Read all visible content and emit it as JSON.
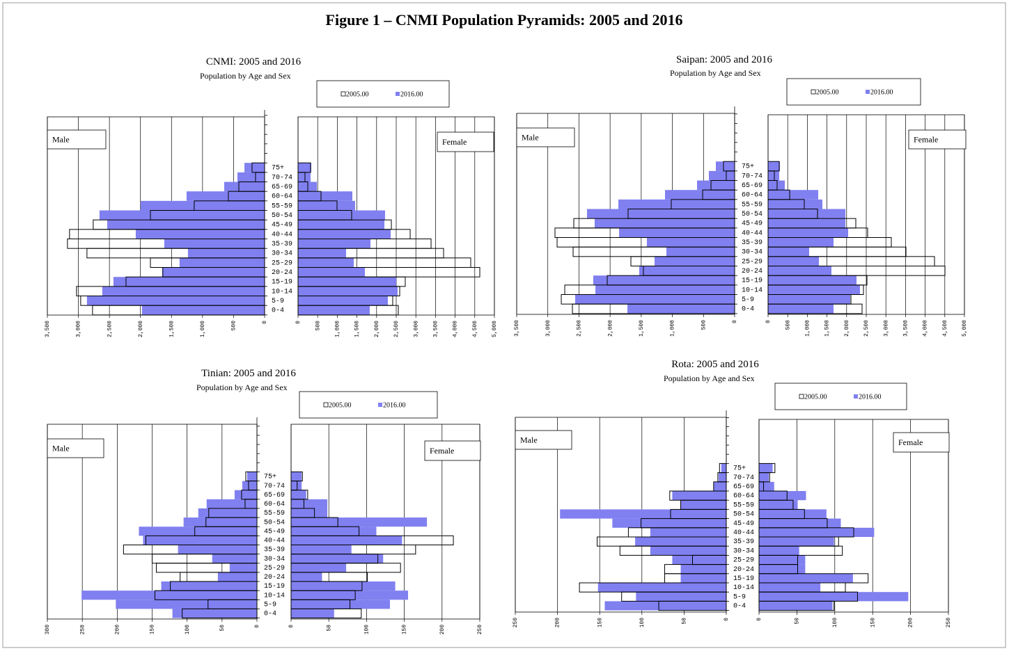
{
  "figure_title": "Figure 1 – CNMI Population Pyramids: 2005 and 2016",
  "chart_data": [
    {
      "type": "pyramid",
      "title": "CNMI: 2005 and 2016",
      "subtitle": "Population by Age and Sex",
      "male_label": "Male",
      "female_label": "Female",
      "categories": [
        "0-4",
        "5-9",
        "10-14",
        "15-19",
        "20-24",
        "25-29",
        "30-34",
        "35-39",
        "40-44",
        "45-49",
        "50-54",
        "55-59",
        "60-64",
        "65-69",
        "70-74",
        "75+"
      ],
      "series": [
        {
          "name": "2005.00",
          "color": "#ffffff",
          "male": [
            2772,
            2963,
            3030,
            2233,
            1640,
            1840,
            2862,
            3176,
            3143,
            2761,
            1840,
            1134,
            584,
            415,
            146,
            202
          ],
          "female": [
            2553,
            2411,
            2589,
            2730,
            4628,
            4397,
            3706,
            3387,
            2855,
            2376,
            1365,
            993,
            585,
            248,
            177,
            319
          ]
        },
        {
          "name": "2016.00",
          "color": "#8080f0",
          "male": [
            1975,
            2862,
            2615,
            2435,
            1650,
            1370,
            1235,
            1616,
            2076,
            2536,
            2660,
            1998,
            1257,
            651,
            438,
            325
          ],
          "female": [
            1826,
            2287,
            2535,
            2500,
            1702,
            1418,
            1223,
            1844,
            2358,
            2199,
            2216,
            1454,
            1383,
            479,
            319,
            337
          ]
        }
      ],
      "male_xlim": [
        0,
        3500
      ],
      "male_xticks": [
        0,
        500,
        {
          "value": 1000,
          "label": "1,000"
        },
        {
          "value": 1500,
          "label": "1,500"
        },
        {
          "value": 2000,
          "label": "2,000"
        },
        {
          "value": 2500,
          "label": "2,500"
        },
        {
          "value": 3000,
          "label": "3,000"
        },
        {
          "value": 3500,
          "label": "3,500"
        }
      ],
      "female_xlim": [
        0,
        5000
      ],
      "female_xticks": [
        0,
        500,
        {
          "value": 1000,
          "label": "1,000"
        },
        {
          "value": 1500,
          "label": "1,500"
        },
        {
          "value": 2000,
          "label": "2,000"
        },
        {
          "value": 2500,
          "label": "2,500"
        },
        {
          "value": 3000,
          "label": "3,000"
        },
        {
          "value": 3500,
          "label": "3,500"
        },
        {
          "value": 4000,
          "label": "4,000"
        },
        {
          "value": 4500,
          "label": "4,500"
        },
        {
          "value": 5000,
          "label": "5,000"
        }
      ]
    },
    {
      "type": "pyramid",
      "title": "Saipan: 2005 and 2016",
      "subtitle": "Population by Age and Sex",
      "male_label": "Male",
      "female_label": "Female",
      "categories": [
        "0-4",
        "5-9",
        "10-14",
        "15-19",
        "20-24",
        "25-29",
        "30-34",
        "35-39",
        "40-44",
        "45-49",
        "50-54",
        "55-59",
        "60-64",
        "65-69",
        "70-74",
        "75+"
      ],
      "series": [
        {
          "name": "2005.00",
          "color": "#ffffff",
          "male": [
            2605,
            2784,
            2728,
            2046,
            1465,
            1666,
            2594,
            2851,
            2885,
            2583,
            1711,
            1018,
            514,
            380,
            134,
            179
          ],
          "female": [
            2394,
            2110,
            2429,
            2518,
            4504,
            4238,
            3511,
            3138,
            2535,
            2234,
            1259,
            922,
            550,
            230,
            160,
            284
          ]
        },
        {
          "name": "2016.00",
          "color": "#8080f0",
          "male": [
            1722,
            2561,
            2236,
            2270,
            1532,
            1286,
            1096,
            1409,
            1856,
            2248,
            2371,
            1867,
            1118,
            604,
            414,
            302
          ],
          "female": [
            1667,
            2092,
            2340,
            2252,
            1614,
            1294,
            1046,
            1667,
            2039,
            1968,
            1968,
            1383,
            1277,
            426,
            284,
            301
          ]
        }
      ],
      "male_xlim": [
        0,
        3500
      ],
      "male_xticks": [
        0,
        500,
        {
          "value": 1000,
          "label": "1,000"
        },
        {
          "value": 1500,
          "label": "1,500"
        },
        {
          "value": 2000,
          "label": "2,000"
        },
        {
          "value": 2500,
          "label": "2,500"
        },
        {
          "value": 3000,
          "label": "3,000"
        },
        {
          "value": 3500,
          "label": "3,500"
        }
      ],
      "female_xlim": [
        0,
        5000
      ],
      "female_xticks": [
        0,
        500,
        {
          "value": 1000,
          "label": "1,000"
        },
        {
          "value": 1500,
          "label": "1,500"
        },
        {
          "value": 2000,
          "label": "2,000"
        },
        {
          "value": 2500,
          "label": "2,500"
        },
        {
          "value": 3000,
          "label": "3,000"
        },
        {
          "value": 3500,
          "label": "3,500"
        },
        {
          "value": 4000,
          "label": "4,000"
        },
        {
          "value": 4500,
          "label": "4,500"
        },
        {
          "value": 5000,
          "label": "5,000"
        }
      ]
    },
    {
      "type": "pyramid",
      "title": "Tinian: 2005 and 2016",
      "subtitle": "Population by Age and Sex",
      "male_label": "Male",
      "female_label": "Female",
      "categories": [
        "0-4",
        "5-9",
        "10-14",
        "15-19",
        "20-24",
        "25-29",
        "30-34",
        "35-39",
        "40-44",
        "45-49",
        "50-54",
        "55-59",
        "60-64",
        "65-69",
        "70-74",
        "75+"
      ],
      "series": [
        {
          "name": "2005.00",
          "color": "#ffffff",
          "male": [
            107,
            70,
            146,
            124,
            110,
            144,
            150,
            191,
            159,
            89,
            73,
            69,
            17,
            22,
            12,
            16
          ],
          "female": [
            93,
            78,
            85,
            94,
            101,
            145,
            115,
            165,
            215,
            90,
            62,
            31,
            17,
            22,
            8,
            15
          ]
        },
        {
          "name": "2016.00",
          "color": "#8080f0",
          "male": [
            121,
            202,
            251,
            137,
            56,
            39,
            64,
            113,
            163,
            169,
            105,
            84,
            72,
            32,
            21,
            14
          ],
          "female": [
            57,
            131,
            155,
            138,
            41,
            73,
            122,
            80,
            147,
            113,
            180,
            48,
            48,
            20,
            14,
            14
          ]
        }
      ],
      "male_xlim": [
        0,
        300
      ],
      "male_xticks": [
        0,
        50,
        100,
        150,
        200,
        250,
        300
      ],
      "female_xlim": [
        0,
        250
      ],
      "female_xticks": [
        0,
        50,
        100,
        150,
        200,
        250
      ]
    },
    {
      "type": "pyramid",
      "title": "Rota: 2005 and 2016",
      "subtitle": "Population by Age and Sex",
      "male_label": "Male",
      "female_label": "Female",
      "categories": [
        "0-4",
        "5-9",
        "10-14",
        "15-19",
        "20-24",
        "25-29",
        "30-34",
        "35-39",
        "40-44",
        "45-49",
        "50-54",
        "55-59",
        "60-64",
        "65-69",
        "70-74",
        "75+"
      ],
      "series": [
        {
          "name": "2005.00",
          "color": "#ffffff",
          "male": [
            80,
            124,
            174,
            73,
            73,
            40,
            126,
            153,
            116,
            101,
            66,
            54,
            67,
            15,
            10,
            8
          ],
          "female": [
            99,
            130,
            114,
            144,
            51,
            51,
            110,
            105,
            125,
            90,
            60,
            45,
            37,
            6,
            14,
            21
          ]
        },
        {
          "name": "2016.00",
          "color": "#8080f0",
          "male": [
            144,
            107,
            152,
            54,
            54,
            64,
            90,
            108,
            90,
            135,
            197,
            54,
            64,
            15,
            9,
            6
          ],
          "female": [
            97,
            197,
            81,
            124,
            61,
            61,
            53,
            99,
            152,
            108,
            89,
            51,
            62,
            20,
            13,
            18
          ]
        }
      ],
      "male_xlim": [
        0,
        250
      ],
      "male_xticks": [
        0,
        50,
        100,
        150,
        200,
        250
      ],
      "female_xlim": [
        0,
        250
      ],
      "female_xticks": [
        0,
        50,
        100,
        150,
        200,
        250
      ]
    }
  ]
}
